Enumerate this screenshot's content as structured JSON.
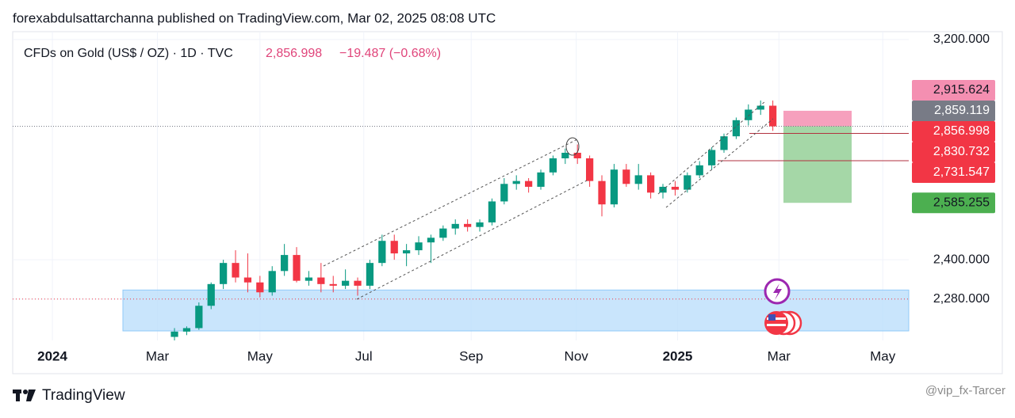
{
  "header": {
    "title": "forexabdulsattarchanna published on TradingView.com, Mar 02, 2025 08:08 UTC"
  },
  "chart_data": {
    "type": "candlestick",
    "symbol": "CFDs on Gold (US$ / OZ) · 1D · TVC",
    "last_price": "2,856.998",
    "change": "−19.487 (−0.68%)",
    "log_scale": true,
    "grid": true,
    "up_color": "#089981",
    "down_color": "#f23645",
    "xlim": [
      -3.25,
      70.13
    ],
    "xticks": [
      {
        "value": 0,
        "label": "2024"
      },
      {
        "value": 8.6,
        "label": "Mar"
      },
      {
        "value": 17.0,
        "label": "May"
      },
      {
        "value": 25.5,
        "label": "Jul"
      },
      {
        "value": 34.3,
        "label": "Sep"
      },
      {
        "value": 42.9,
        "label": "Nov"
      },
      {
        "value": 51.2,
        "label": "2025"
      },
      {
        "value": 59.5,
        "label": "Mar"
      },
      {
        "value": 68.0,
        "label": "May"
      }
    ],
    "ylim": [
      2160,
      3233
    ],
    "yticks": [
      {
        "value": 3200,
        "label": "3,200.000"
      },
      {
        "value": 2400,
        "label": "2,400.000"
      },
      {
        "value": 2280,
        "label": "2,280.000"
      }
    ],
    "x": [
      10,
      11,
      12,
      13,
      14,
      15,
      16,
      17,
      18,
      19,
      20,
      21,
      22,
      23,
      24,
      25,
      26,
      27,
      28,
      29,
      30,
      31,
      32,
      33,
      34,
      35,
      36,
      37,
      38,
      39,
      40,
      41,
      42,
      43,
      44,
      45,
      46,
      47,
      48,
      49,
      50,
      51,
      52,
      53,
      54,
      55,
      56,
      57,
      58,
      59
    ],
    "ohlc": [
      [
        2170,
        2195,
        2160,
        2185
      ],
      [
        2185,
        2200,
        2175,
        2195
      ],
      [
        2195,
        2270,
        2190,
        2260
      ],
      [
        2260,
        2330,
        2250,
        2325
      ],
      [
        2325,
        2400,
        2310,
        2390
      ],
      [
        2390,
        2430,
        2330,
        2345
      ],
      [
        2345,
        2420,
        2300,
        2330
      ],
      [
        2330,
        2350,
        2285,
        2300
      ],
      [
        2300,
        2380,
        2290,
        2365
      ],
      [
        2365,
        2450,
        2350,
        2415
      ],
      [
        2415,
        2440,
        2330,
        2335
      ],
      [
        2335,
        2365,
        2320,
        2345
      ],
      [
        2345,
        2390,
        2300,
        2325
      ],
      [
        2325,
        2350,
        2300,
        2320
      ],
      [
        2320,
        2370,
        2310,
        2335
      ],
      [
        2335,
        2345,
        2290,
        2320
      ],
      [
        2320,
        2400,
        2310,
        2390
      ],
      [
        2390,
        2480,
        2380,
        2460
      ],
      [
        2460,
        2480,
        2400,
        2420
      ],
      [
        2420,
        2450,
        2380,
        2430
      ],
      [
        2430,
        2475,
        2415,
        2455
      ],
      [
        2455,
        2480,
        2390,
        2470
      ],
      [
        2470,
        2510,
        2460,
        2500
      ],
      [
        2500,
        2530,
        2480,
        2515
      ],
      [
        2515,
        2530,
        2490,
        2505
      ],
      [
        2505,
        2530,
        2490,
        2520
      ],
      [
        2520,
        2600,
        2510,
        2590
      ],
      [
        2590,
        2670,
        2580,
        2650
      ],
      [
        2650,
        2680,
        2630,
        2660
      ],
      [
        2660,
        2670,
        2620,
        2640
      ],
      [
        2640,
        2700,
        2630,
        2690
      ],
      [
        2690,
        2750,
        2680,
        2740
      ],
      [
        2740,
        2775,
        2720,
        2760
      ],
      [
        2760,
        2790,
        2720,
        2740
      ],
      [
        2740,
        2750,
        2640,
        2660
      ],
      [
        2660,
        2680,
        2540,
        2580
      ],
      [
        2580,
        2720,
        2570,
        2700
      ],
      [
        2700,
        2720,
        2640,
        2650
      ],
      [
        2650,
        2720,
        2630,
        2680
      ],
      [
        2680,
        2690,
        2600,
        2620
      ],
      [
        2620,
        2650,
        2600,
        2640
      ],
      [
        2640,
        2660,
        2610,
        2630
      ],
      [
        2630,
        2690,
        2620,
        2680
      ],
      [
        2680,
        2730,
        2670,
        2715
      ],
      [
        2715,
        2780,
        2700,
        2770
      ],
      [
        2770,
        2830,
        2760,
        2820
      ],
      [
        2820,
        2890,
        2810,
        2880
      ],
      [
        2880,
        2940,
        2860,
        2920
      ],
      [
        2920,
        2955,
        2900,
        2935
      ],
      [
        2935,
        2955,
        2840,
        2857
      ]
    ],
    "price_labels": [
      {
        "value": 2915.624,
        "label": "2,915.624",
        "color": "#f48fb1",
        "text_color": "#131722"
      },
      {
        "value": 2859.119,
        "label": "2,859.119",
        "color": "#787b86",
        "text_color": "#ffffff"
      },
      {
        "value": 2856.998,
        "label": "2,856.998",
        "color": "#f23645",
        "text_color": "#ffffff"
      },
      {
        "value": 2830.732,
        "label": "2,830.732",
        "color": "#f23645",
        "text_color": "#ffffff"
      },
      {
        "value": 2731.547,
        "label": "2,731.547",
        "color": "#f23645",
        "text_color": "#ffffff"
      },
      {
        "value": 2585.255,
        "label": "2,585.255",
        "color": "#4caf50",
        "text_color": "#131722"
      }
    ],
    "zone": {
      "low": 2187,
      "high": 2307,
      "color": "#bbdefb"
    }
  },
  "footer": {
    "brand": "TradingView",
    "watermark": "@vip_fx-Tarcer"
  }
}
